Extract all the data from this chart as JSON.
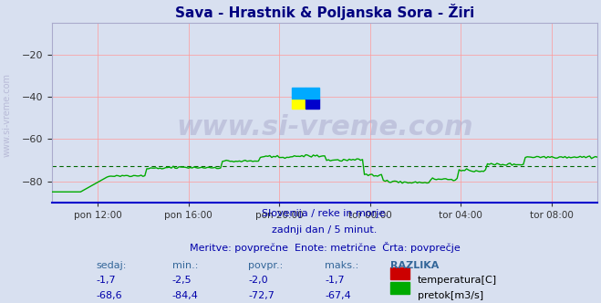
{
  "title": "Sava - Hrastnik & Poljanska Sora - Žiri",
  "title_color": "#000080",
  "background_color": "#d8e0f0",
  "plot_bg_color": "#d8e0f0",
  "xlim": [
    0,
    288
  ],
  "ylim": [
    -90,
    -5
  ],
  "yticks": [
    -80,
    -60,
    -40,
    -20
  ],
  "xlabel_ticks": [
    24,
    72,
    120,
    168,
    216,
    264
  ],
  "xlabel_labels": [
    "pon 12:00",
    "pon 16:00",
    "pon 20:00",
    "tor 00:00",
    "tor 04:00",
    "tor 08:00"
  ],
  "grid_color": "#ff9999",
  "grid_color_h": "#ff9999",
  "avg_line_color_red": "#cc0000",
  "avg_line_color_green": "#006600",
  "temp_color": "#cc0000",
  "flow_color": "#00aa00",
  "avg_temp": -2.0,
  "avg_flow": -72.7,
  "watermark": "www.si-vreme.com",
  "watermark_color": "#aaaacc",
  "subtitle1": "Slovenija / reke in morje.",
  "subtitle2": "zadnji dan / 5 minut.",
  "subtitle3": "Meritve: povprečne  Enote: metrične  Črta: povprečje",
  "subtitle_color": "#0000aa",
  "left_label_color": "#336699",
  "table_headers": [
    "sedaj:",
    "min.:",
    "povpr.:",
    "maks.:",
    "RAZLIKA"
  ],
  "temp_row": [
    "-1,7",
    "-2,5",
    "-2,0",
    "-1,7"
  ],
  "flow_row": [
    "-68,6",
    "-84,4",
    "-72,7",
    "-67,4"
  ],
  "legend_temp": "temperatura[C]",
  "legend_flow": "pretok[m3/s]"
}
